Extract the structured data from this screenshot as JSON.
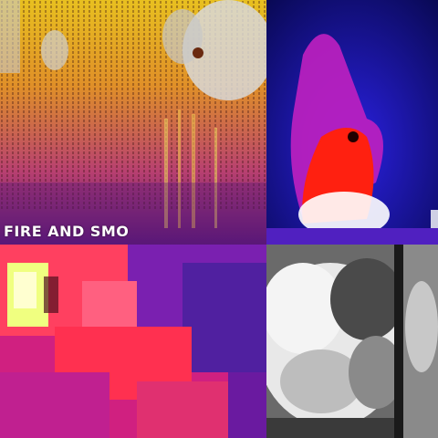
{
  "collage": {
    "caption": "FIRE AND SMO",
    "panels": [
      {
        "name": "thermal-wall",
        "palette": [
          "#f0b020",
          "#e08020",
          "#c04060",
          "#6a1a7a"
        ]
      },
      {
        "name": "thermal-fire-plume",
        "palette": [
          "#1a10c0",
          "#c020c0",
          "#ff2010",
          "#ffffff"
        ]
      },
      {
        "name": "pixelated-thermal",
        "palette": [
          "#ff4060",
          "#d02080",
          "#5020a0",
          "#f0ff80"
        ]
      },
      {
        "name": "smoke-cloud",
        "palette": [
          "#f2f2f2",
          "#9a9a9a",
          "#3a3a3a",
          "#1a1a1a"
        ]
      }
    ]
  }
}
